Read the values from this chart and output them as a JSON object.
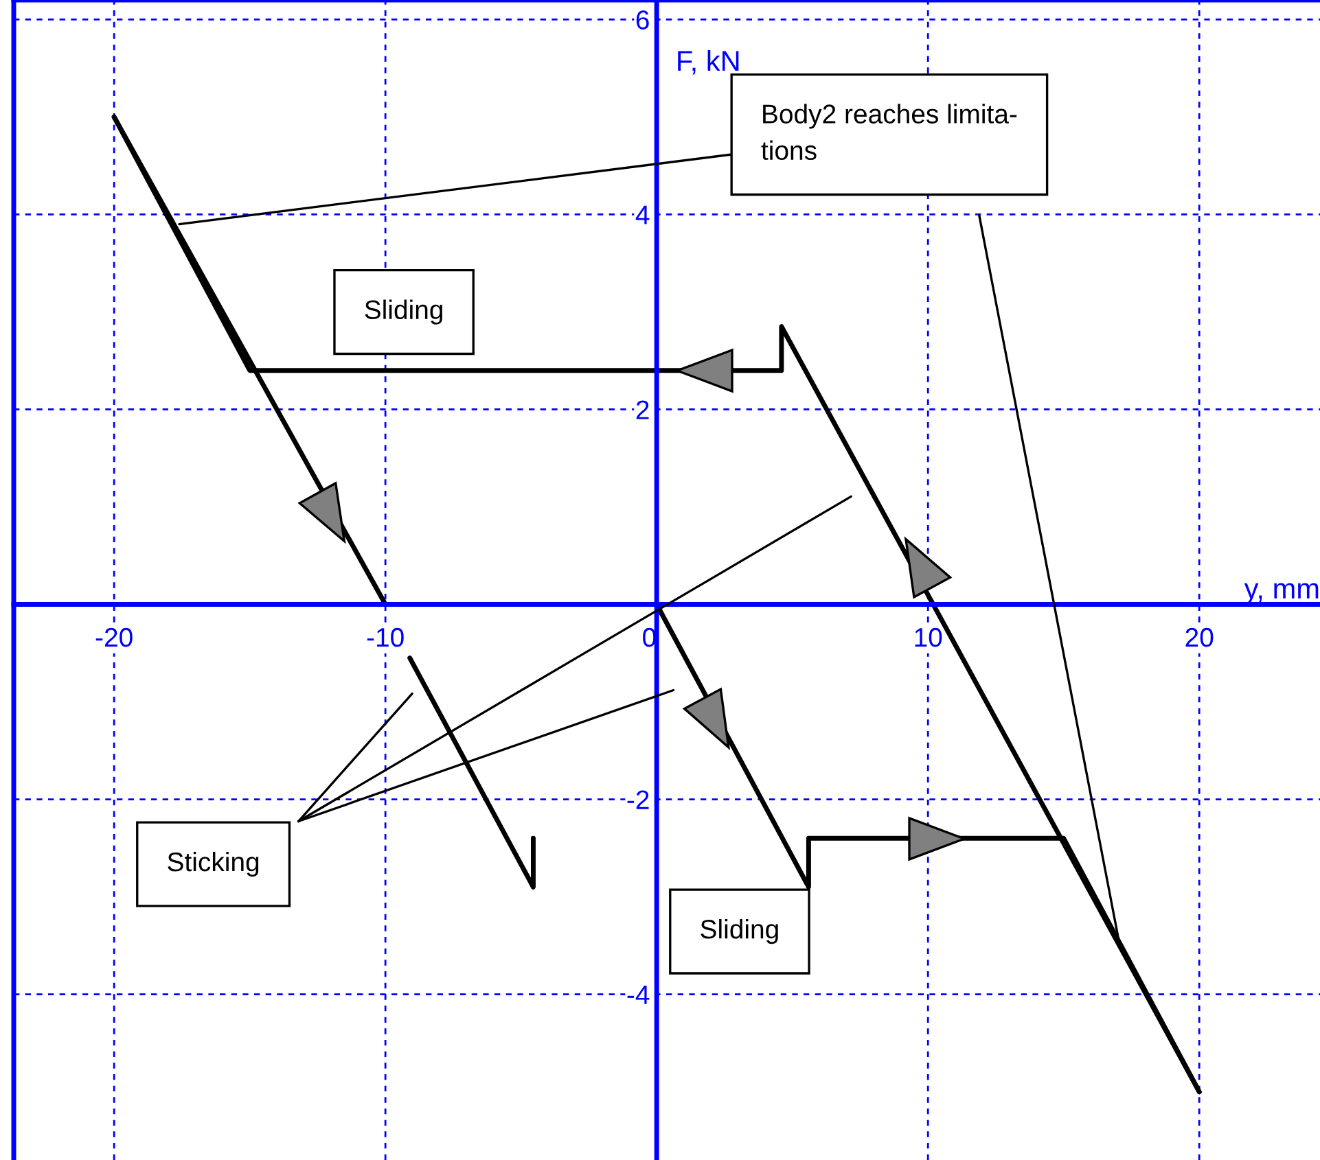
{
  "chart_data": {
    "type": "line",
    "xlabel": "y, mm",
    "ylabel": "F, kN",
    "xlim": [
      -23.7,
      24.45
    ],
    "ylim": [
      -5.7,
      6.2
    ],
    "xticks": [
      -20,
      -10,
      0,
      10,
      20
    ],
    "yticks": [
      -4,
      -2,
      {
        "value": 0,
        "label": null
      },
      2,
      4,
      6
    ],
    "grid": true,
    "series": [
      {
        "color": "#000000",
        "x": [
          -20,
          -10
        ],
        "values": [
          5.0,
          0.0
        ]
      },
      {
        "color": "#000000",
        "x": [
          0,
          5.6,
          5.6,
          15,
          20
        ],
        "values": [
          0.0,
          -2.9,
          -2.4,
          -2.4,
          -5.0
        ]
      },
      {
        "color": "#000000",
        "x": [
          20,
          4.6,
          4.6,
          -15,
          -20
        ],
        "values": [
          -5.0,
          2.85,
          2.4,
          2.4,
          5.0
        ]
      },
      {
        "color": "#000000",
        "x": [
          -9.1,
          -4.55,
          -4.55
        ],
        "values": [
          -0.55,
          -2.9,
          -2.4
        ]
      }
    ],
    "annotations": [
      {
        "text": "Body2 reaches limita-\ntions",
        "x": -17.6,
        "y": 3.9
      },
      {
        "text": "Sliding"
      },
      "Sticking",
      {
        "text": "Sliding"
      }
    ]
  }
}
